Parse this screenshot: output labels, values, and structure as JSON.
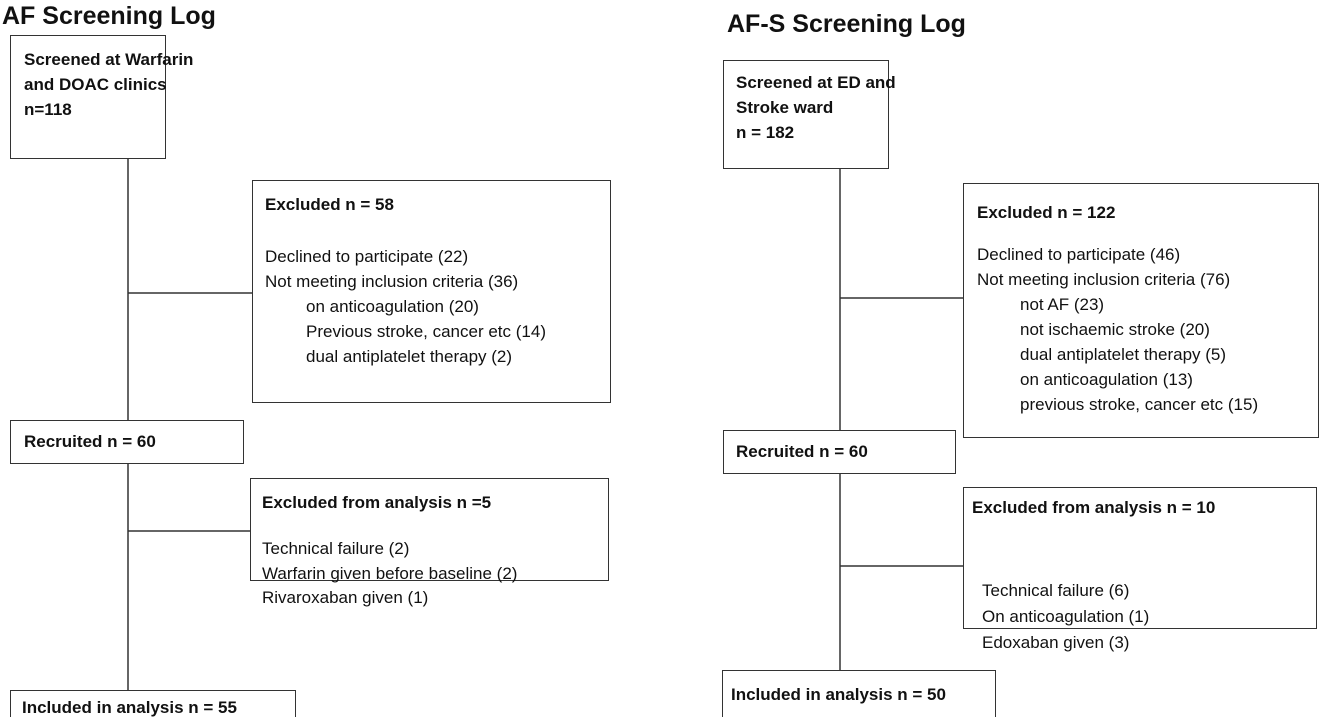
{
  "left": {
    "title": "AF Screening Log",
    "screened": [
      "Screened at Warfarin",
      "and DOAC clinics",
      "n=118"
    ],
    "excluded": {
      "heading": "Excluded n = 58",
      "items": [
        "Declined to participate (22)",
        "Not meeting inclusion criteria (36)"
      ],
      "subitems": [
        "on anticoagulation (20)",
        "Previous stroke, cancer etc (14)",
        "dual antiplatelet therapy (2)"
      ]
    },
    "recruited": "Recruited n = 60",
    "excluded_analysis": {
      "heading": "Excluded from analysis n =5",
      "items": [
        "Technical failure (2)",
        "Warfarin given before baseline (2)",
        "Rivaroxaban given (1)"
      ]
    },
    "included": "Included in analysis n = 55"
  },
  "right": {
    "title": "AF-S Screening Log",
    "screened": [
      "Screened at ED and",
      "Stroke ward",
      "n = 182"
    ],
    "excluded": {
      "heading": "Excluded n = 122",
      "items": [
        "Declined to participate (46)",
        "Not meeting inclusion criteria (76)"
      ],
      "subitems": [
        "not AF (23)",
        "not ischaemic stroke (20)",
        "dual antiplatelet therapy (5)",
        "on anticoagulation (13)",
        "previous stroke, cancer etc (15)"
      ]
    },
    "recruited": "Recruited n = 60",
    "excluded_analysis": {
      "heading": "Excluded from analysis n = 10",
      "items": [
        "Technical failure (6)",
        "On anticoagulation (1)",
        "Edoxaban given (3)"
      ]
    },
    "included": "Included in analysis n = 50"
  }
}
